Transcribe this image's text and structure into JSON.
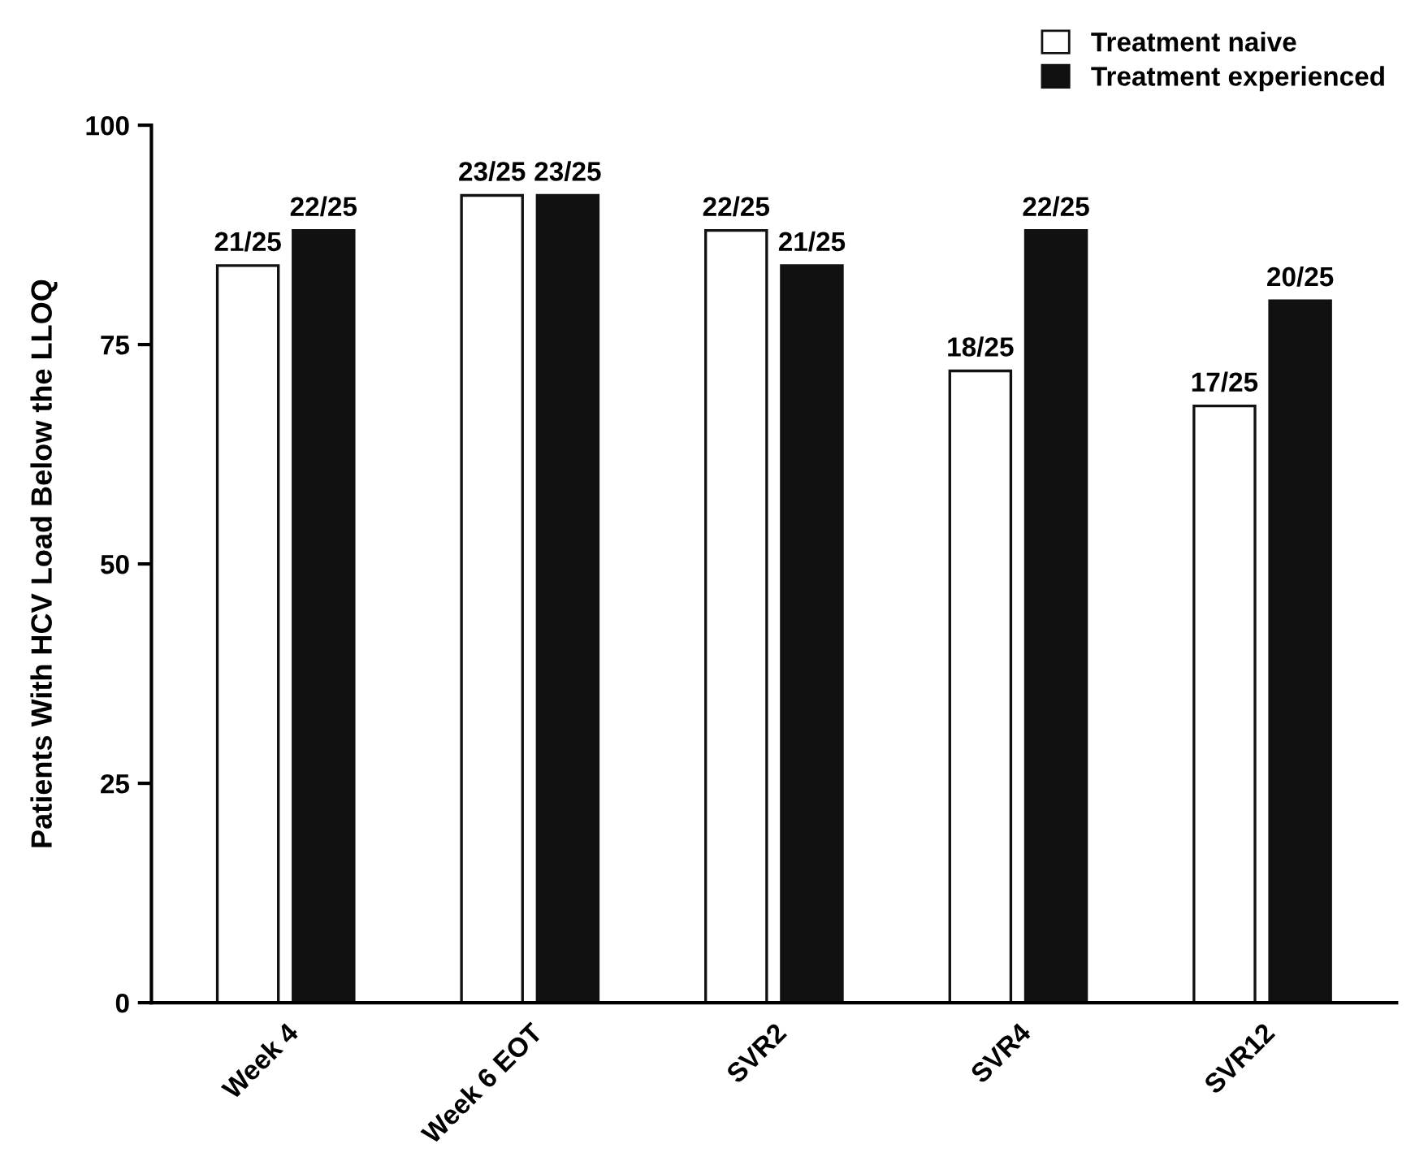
{
  "chart_data": {
    "type": "bar",
    "ylabel": "Patients With HCV Load Below the LLOQ",
    "categories": [
      "Week 4",
      "Week 6 EOT",
      "SVR2",
      "SVR4",
      "SVR12"
    ],
    "series": [
      {
        "name": "Treatment naive",
        "color": "#ffffff",
        "values": [
          84,
          92,
          88,
          72,
          68
        ],
        "value_labels": [
          "21/25",
          "23/25",
          "22/25",
          "18/25",
          "17/25"
        ]
      },
      {
        "name": "Treatment experienced",
        "color": "#111111",
        "values": [
          88,
          92,
          84,
          88,
          80
        ],
        "value_labels": [
          "22/25",
          "23/25",
          "21/25",
          "22/25",
          "20/25"
        ]
      }
    ],
    "ylim": [
      0,
      100
    ],
    "yticks": [
      0,
      25,
      50,
      75,
      100
    ],
    "grid": false,
    "legend": "top right"
  }
}
